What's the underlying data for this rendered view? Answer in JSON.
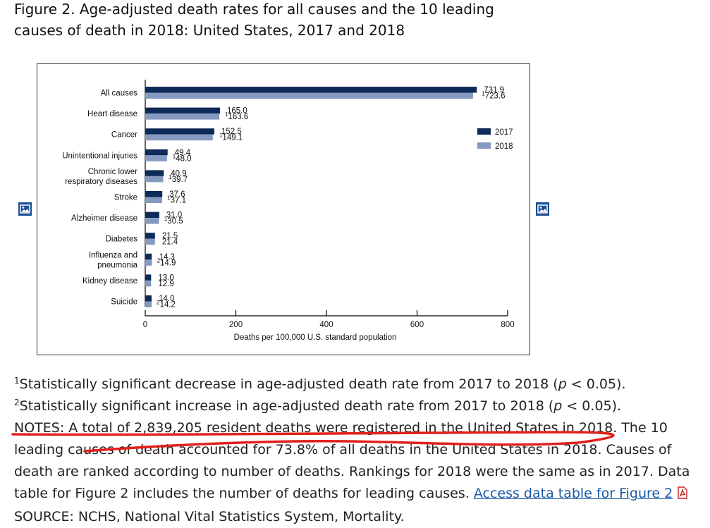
{
  "figure": {
    "title_line1": "Figure 2. Age-adjusted death rates for all causes and the 10 leading",
    "title_line2": "causes of death in 2018: United States, 2017 and 2018"
  },
  "icons": {
    "left": "image-icon",
    "right": "image-icon",
    "pdf": "pdf-icon"
  },
  "colors": {
    "series2017": "#0e2a58",
    "series2018": "#8699c0",
    "annotation": "#e0201a",
    "link": "#1a58a8"
  },
  "chart_data": {
    "type": "bar",
    "orientation": "horizontal",
    "categories": [
      [
        "All causes"
      ],
      [
        "Heart disease"
      ],
      [
        "Cancer"
      ],
      [
        "Unintentional injuries"
      ],
      [
        "Chronic lower",
        "respiratory diseases"
      ],
      [
        "Stroke"
      ],
      [
        "Alzheimer disease"
      ],
      [
        "Diabetes"
      ],
      [
        "Influenza and",
        "pneumonia"
      ],
      [
        "Kidney disease"
      ],
      [
        "Suicide"
      ]
    ],
    "series": [
      {
        "name": "2017",
        "color": "#0e2a58",
        "values": [
          731.9,
          165.0,
          152.5,
          49.4,
          40.9,
          37.6,
          31.0,
          21.5,
          14.3,
          13.0,
          14.0
        ],
        "labels": [
          "731.9",
          "165.0",
          "152.5",
          "49.4",
          "40.9",
          "37.6",
          "31.0",
          "21.5",
          "14.3",
          "13.0",
          "14.0"
        ],
        "marks": [
          "",
          "",
          "",
          "",
          "",
          "",
          "",
          "",
          "",
          "",
          ""
        ]
      },
      {
        "name": "2018",
        "color": "#8699c0",
        "values": [
          723.6,
          163.6,
          149.1,
          48.0,
          39.7,
          37.1,
          30.5,
          21.4,
          14.9,
          12.9,
          14.2
        ],
        "labels": [
          "723.6",
          "163.6",
          "149.1",
          "48.0",
          "39.7",
          "37.1",
          "30.5",
          "21.4",
          "14.9",
          "12.9",
          "14.2"
        ],
        "marks": [
          "1",
          "1",
          "1",
          "1",
          "1",
          "1",
          "1",
          "",
          "2",
          "",
          "2"
        ]
      }
    ],
    "xlim": [
      0,
      800
    ],
    "xticks": [
      0,
      200,
      400,
      600,
      800
    ],
    "xlabel": "Deaths per 100,000 U.S. standard population",
    "legend": [
      "2017",
      "2018"
    ],
    "legend_position": "right"
  },
  "footnotes": {
    "n1_mark": "1",
    "n1_text": "Statistically significant decrease in age-adjusted death rate from 2017 to 2018 (",
    "n1_p": "p",
    "n1_end": " < 0.05).",
    "n2_mark": "2",
    "n2_text": "Statistically significant increase in age-adjusted death rate from 2017 to 2018 (",
    "n2_p": "p",
    "n2_end": " < 0.05).",
    "notes_line1": "NOTES: A total of 2,839,205 resident deaths were registered in the United States in 2018. The 10",
    "notes_line2": "leading causes of death accounted for 73.8% of all deaths in the United States in 2018. Causes of",
    "notes_line3": "death are ranked according to number of deaths. Rankings for 2018 were the same as in 2017. Data",
    "notes_line4": "table for Figure 2 includes the number of deaths for leading causes. ",
    "link_text": "Access data table for Figure 2",
    "source": "SOURCE: NCHS, National Vital Statistics System, Mortality."
  }
}
